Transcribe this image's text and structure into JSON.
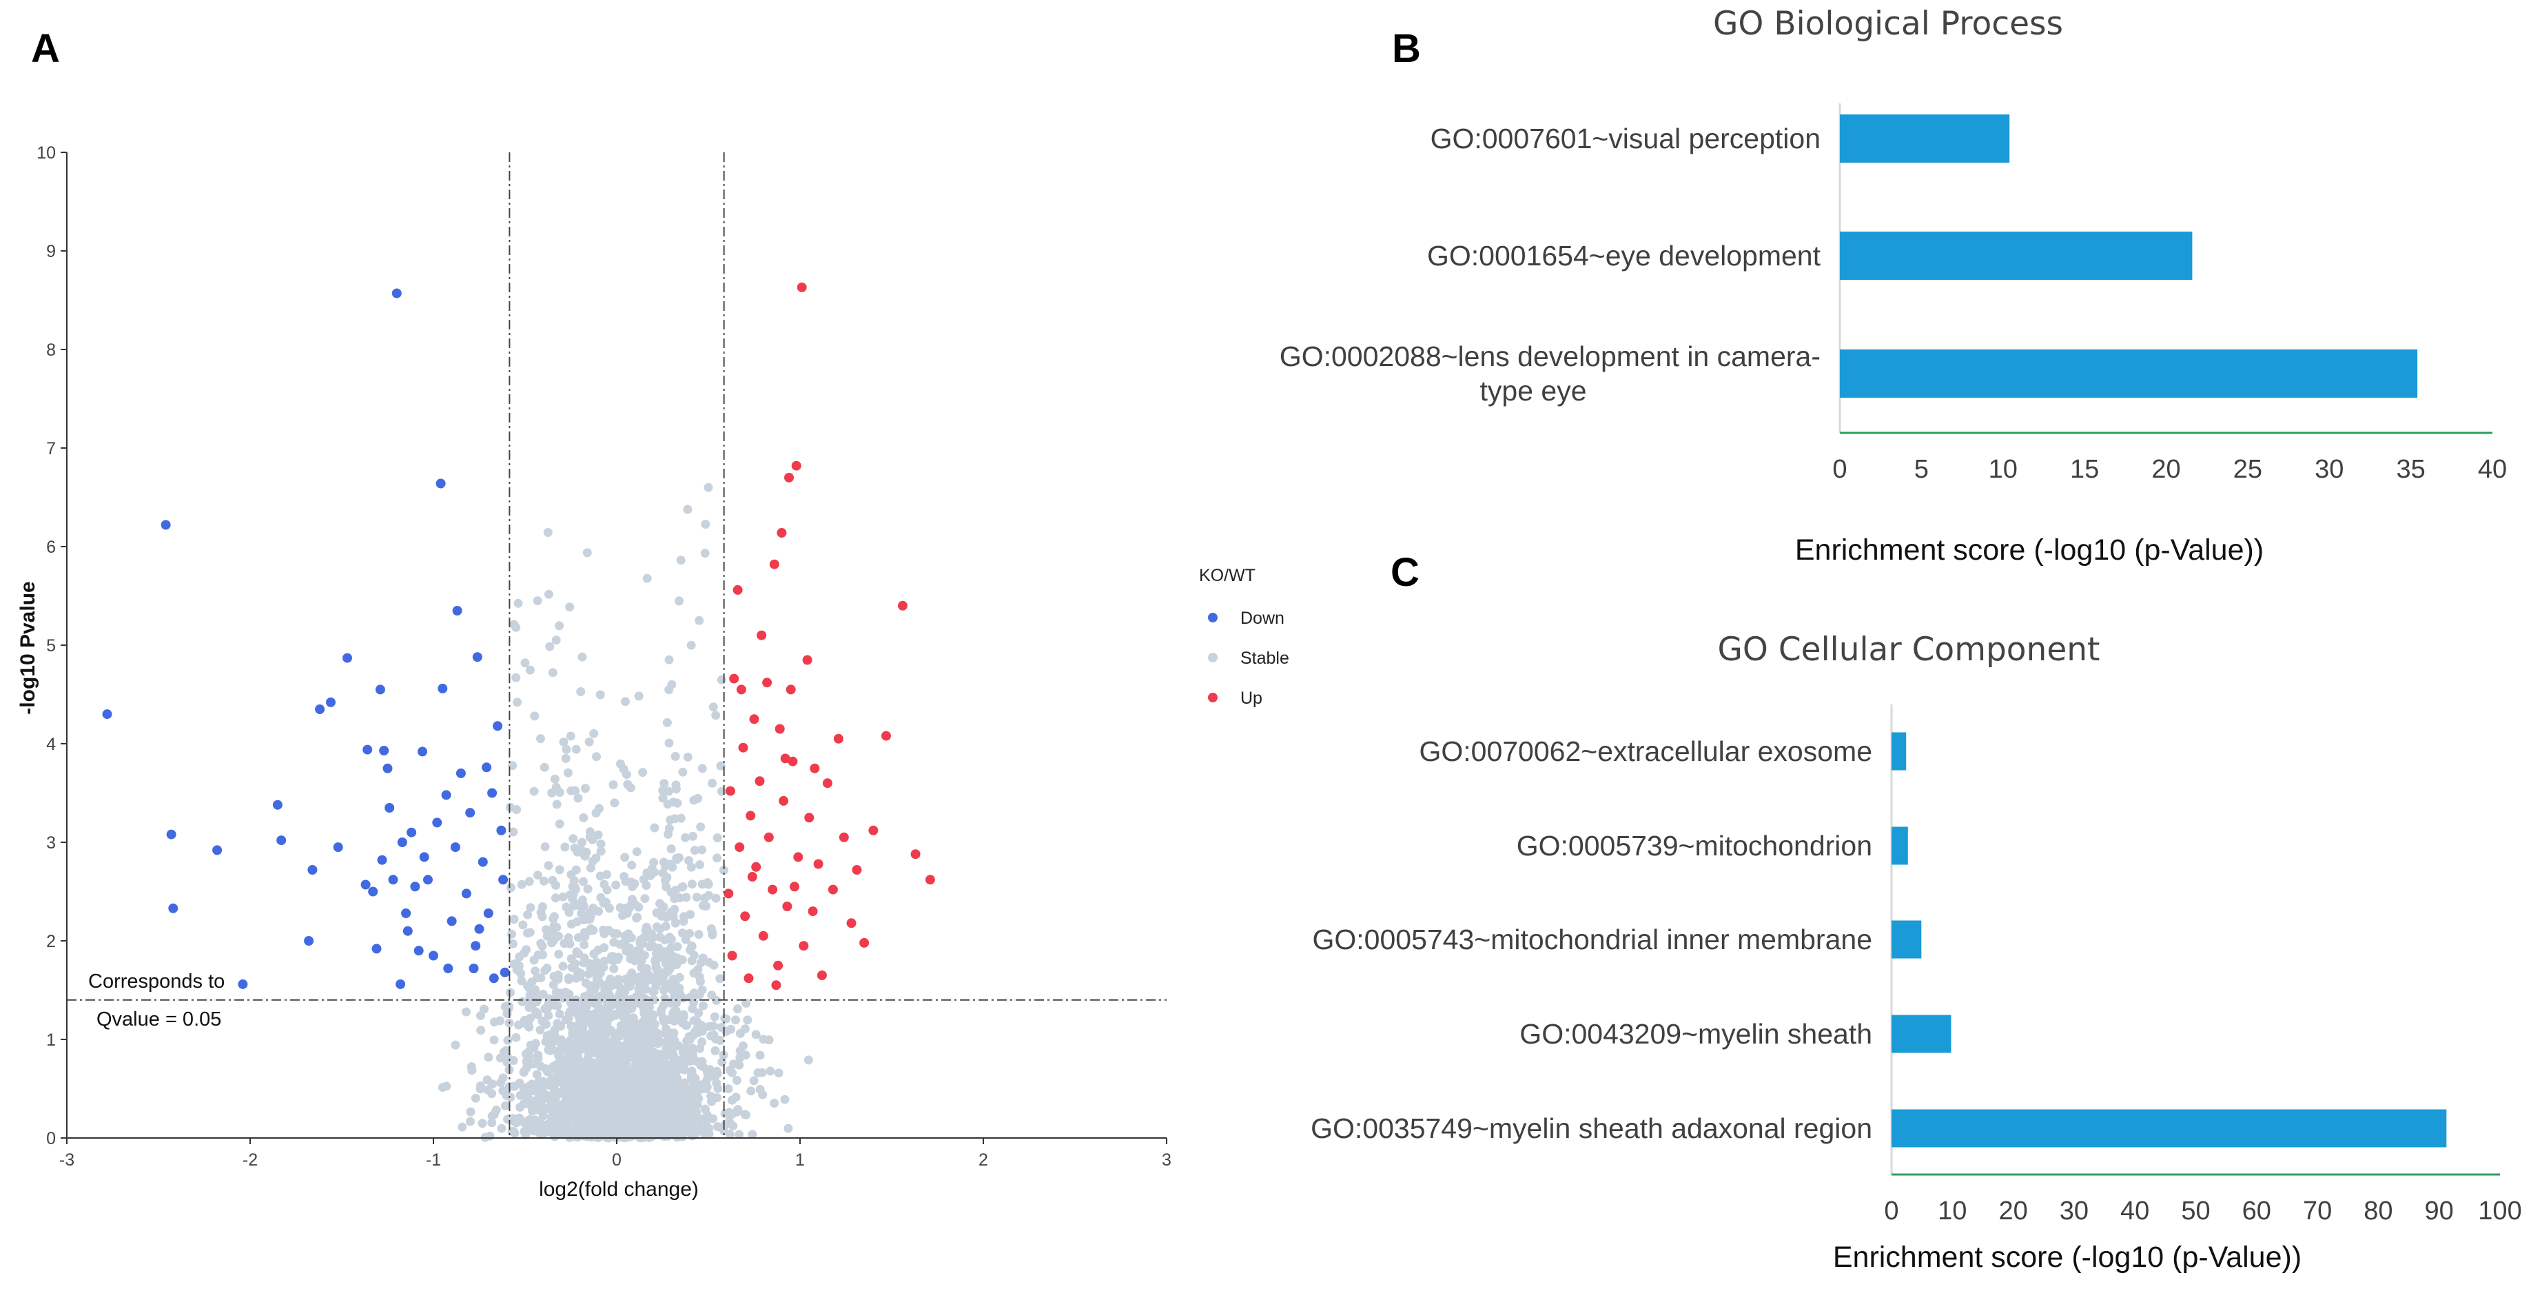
{
  "panels": {
    "a": "A",
    "b": "B",
    "c": "C"
  },
  "chart_data": [
    {
      "type": "scatter",
      "subtype": "volcano",
      "panel": "A",
      "title": "",
      "xlabel": "log2(fold change)",
      "ylabel": "-log10 Pvalue",
      "xlim": [
        -3,
        3
      ],
      "ylim": [
        0,
        10
      ],
      "xticks": [
        -3,
        -2,
        -1,
        0,
        1,
        2,
        3
      ],
      "yticks": [
        0,
        1,
        2,
        3,
        4,
        5,
        6,
        7,
        8,
        9,
        10
      ],
      "fc_threshold_lines": [
        -0.585,
        0.585
      ],
      "significance_line": 1.4,
      "annotation_line1": "Corresponds to",
      "annotation_line2": "Qvalue = 0.05",
      "legend": {
        "title": "KO/WT",
        "entries": [
          {
            "label": "Down",
            "color": "#4169e1"
          },
          {
            "label": "Stable",
            "color": "#c8d2dc"
          },
          {
            "label": "Up",
            "color": "#ef3b4c"
          }
        ]
      },
      "series": [
        {
          "name": "Down",
          "color": "#4169e1",
          "points": [
            [
              -2.78,
              4.3
            ],
            [
              -2.46,
              6.22
            ],
            [
              -2.43,
              3.08
            ],
            [
              -2.42,
              2.33
            ],
            [
              -2.18,
              2.92
            ],
            [
              -2.04,
              1.56
            ],
            [
              -1.85,
              3.38
            ],
            [
              -1.83,
              3.02
            ],
            [
              -1.66,
              2.72
            ],
            [
              -1.68,
              2.0
            ],
            [
              -1.62,
              4.35
            ],
            [
              -1.56,
              4.42
            ],
            [
              -1.52,
              2.95
            ],
            [
              -1.47,
              4.87
            ],
            [
              -1.36,
              3.94
            ],
            [
              -1.37,
              2.57
            ],
            [
              -1.33,
              2.5
            ],
            [
              -1.29,
              4.55
            ],
            [
              -1.27,
              3.93
            ],
            [
              -1.25,
              3.75
            ],
            [
              -1.24,
              3.35
            ],
            [
              -1.22,
              2.62
            ],
            [
              -1.2,
              8.57
            ],
            [
              -1.17,
              3.0
            ],
            [
              -1.14,
              2.1
            ],
            [
              -1.12,
              3.1
            ],
            [
              -1.08,
              1.9
            ],
            [
              -1.06,
              3.92
            ],
            [
              -1.03,
              2.62
            ],
            [
              -1.0,
              1.85
            ],
            [
              -0.96,
              6.64
            ],
            [
              -0.95,
              4.56
            ],
            [
              -0.93,
              3.48
            ],
            [
              -0.9,
              2.2
            ],
            [
              -0.87,
              5.35
            ],
            [
              -0.85,
              3.7
            ],
            [
              -0.82,
              2.48
            ],
            [
              -0.8,
              3.3
            ],
            [
              -0.77,
              1.95
            ],
            [
              -0.76,
              4.88
            ],
            [
              -0.73,
              2.8
            ],
            [
              -0.71,
              3.76
            ],
            [
              -0.7,
              2.28
            ],
            [
              -0.67,
              1.62
            ],
            [
              -0.65,
              4.18
            ],
            [
              -0.63,
              3.12
            ],
            [
              -0.62,
              2.62
            ],
            [
              -0.61,
              1.68
            ],
            [
              -1.31,
              1.92
            ],
            [
              -1.15,
              2.28
            ],
            [
              -1.05,
              2.85
            ],
            [
              -0.92,
              1.72
            ],
            [
              -0.88,
              2.95
            ],
            [
              -0.78,
              1.72
            ],
            [
              -0.75,
              2.12
            ],
            [
              -0.68,
              3.5
            ],
            [
              -1.18,
              1.56
            ],
            [
              -1.28,
              2.82
            ],
            [
              -0.98,
              3.2
            ],
            [
              -1.1,
              2.55
            ]
          ]
        },
        {
          "name": "Up",
          "color": "#ef3b4c",
          "points": [
            [
              0.61,
              2.48
            ],
            [
              0.62,
              3.52
            ],
            [
              0.63,
              1.85
            ],
            [
              0.64,
              4.66
            ],
            [
              0.66,
              5.56
            ],
            [
              0.67,
              2.95
            ],
            [
              0.69,
              3.96
            ],
            [
              0.7,
              2.25
            ],
            [
              0.72,
              1.62
            ],
            [
              0.73,
              3.27
            ],
            [
              0.75,
              4.25
            ],
            [
              0.76,
              2.75
            ],
            [
              0.78,
              3.62
            ],
            [
              0.8,
              2.05
            ],
            [
              0.82,
              4.62
            ],
            [
              0.83,
              3.05
            ],
            [
              0.85,
              2.52
            ],
            [
              0.86,
              5.82
            ],
            [
              0.88,
              1.75
            ],
            [
              0.89,
              4.15
            ],
            [
              0.9,
              6.14
            ],
            [
              0.91,
              3.42
            ],
            [
              0.93,
              2.35
            ],
            [
              0.94,
              6.7
            ],
            [
              0.95,
              4.55
            ],
            [
              0.96,
              3.82
            ],
            [
              0.98,
              6.82
            ],
            [
              0.99,
              2.85
            ],
            [
              1.01,
              8.63
            ],
            [
              1.02,
              1.95
            ],
            [
              1.04,
              4.85
            ],
            [
              1.05,
              3.25
            ],
            [
              1.07,
              2.3
            ],
            [
              1.1,
              2.78
            ],
            [
              1.12,
              1.65
            ],
            [
              1.15,
              3.6
            ],
            [
              1.18,
              2.52
            ],
            [
              1.21,
              4.05
            ],
            [
              1.24,
              3.05
            ],
            [
              1.28,
              2.18
            ],
            [
              1.31,
              2.72
            ],
            [
              1.35,
              1.98
            ],
            [
              1.4,
              3.12
            ],
            [
              1.47,
              4.08
            ],
            [
              1.56,
              5.4
            ],
            [
              1.63,
              2.88
            ],
            [
              1.71,
              2.62
            ],
            [
              0.68,
              4.55
            ],
            [
              0.74,
              2.65
            ],
            [
              0.87,
              1.55
            ],
            [
              0.97,
              2.55
            ],
            [
              1.08,
              3.75
            ],
            [
              0.79,
              5.1
            ],
            [
              0.92,
              3.85
            ]
          ]
        },
        {
          "name": "Stable",
          "color": "#c8d2dc",
          "points": [
            [
              0.5,
              6.6
            ],
            [
              -0.5,
              4.82
            ],
            [
              0.3,
              4.6
            ],
            [
              -0.55,
              5.18
            ],
            [
              0.45,
              5.25
            ]
          ]
        }
      ]
    },
    {
      "type": "bar",
      "orientation": "horizontal",
      "panel": "B",
      "title": "GO Biological Process",
      "categories": [
        "GO:0007601~visual perception",
        "GO:0001654~eye development",
        "GO:0002088~lens development in camera-type eye"
      ],
      "label_lines": [
        [
          "GO:0007601~visual perception"
        ],
        [
          "GO:0001654~eye development"
        ],
        [
          "GO:0002088~lens development in camera-",
          "type eye"
        ]
      ],
      "values": [
        10.4,
        21.6,
        35.4
      ],
      "xlabel": "Enrichment score (-log10 (p-Value))",
      "xlim": [
        0,
        40
      ],
      "xticks": [
        0,
        5,
        10,
        15,
        20,
        25,
        30,
        35,
        40
      ],
      "bar_color": "#1a9ad6",
      "axis_color": "#2ca05a"
    },
    {
      "type": "bar",
      "orientation": "horizontal",
      "panel": "C",
      "title": "GO Cellular Component",
      "categories": [
        "GO:0070062~extracellular exosome",
        "GO:0005739~mitochondrion",
        "GO:0005743~mitochondrial inner membrane",
        "GO:0043209~myelin sheath",
        "GO:0035749~myelin sheath adaxonal region"
      ],
      "label_lines": [
        [
          "GO:0070062~extracellular exosome"
        ],
        [
          "GO:0005739~mitochondrion"
        ],
        [
          "GO:0005743~mitochondrial inner membrane"
        ],
        [
          "GO:0043209~myelin sheath"
        ],
        [
          "GO:0035749~myelin sheath adaxonal region"
        ]
      ],
      "values": [
        2.4,
        2.7,
        4.9,
        9.8,
        91.2
      ],
      "xlabel": "Enrichment score (-log10 (p-Value))",
      "xlim": [
        0,
        100
      ],
      "xticks": [
        0,
        10,
        20,
        30,
        40,
        50,
        60,
        70,
        80,
        90,
        100
      ],
      "bar_color": "#1a9ad6",
      "axis_color": "#2ca05a"
    }
  ]
}
